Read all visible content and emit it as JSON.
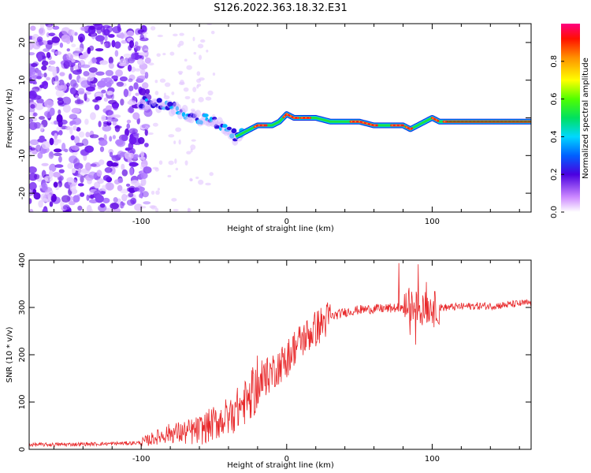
{
  "title": "S126.2022.363.18.32.E31",
  "chart_data": [
    {
      "type": "heatmap",
      "xlabel": "Height of straight line (km)",
      "ylabel": "Frequency (Hz)",
      "xlim": [
        -177,
        168
      ],
      "ylim": [
        -25,
        25
      ],
      "xticks": [
        -100,
        0,
        100
      ],
      "yticks": [
        -20,
        -10,
        0,
        10,
        20
      ],
      "colorbar": {
        "label": "Normalized spectral amplitude",
        "range": [
          0.0,
          1.0
        ],
        "ticks": [
          0.0,
          0.2,
          0.4,
          0.6,
          0.8
        ]
      },
      "ridge": {
        "x": [
          -100,
          -90,
          -80,
          -70,
          -60,
          -50,
          -40,
          -35,
          -30,
          -25,
          -20,
          -15,
          -10,
          -5,
          0,
          5,
          10,
          20,
          30,
          40,
          50,
          60,
          70,
          75,
          80,
          85,
          90,
          95,
          100,
          105,
          110,
          120,
          130,
          140,
          150,
          160,
          168
        ],
        "freq": [
          4,
          4,
          3,
          1,
          0,
          -1,
          -4,
          -5,
          -4,
          -3,
          -2,
          -2,
          -2,
          -1,
          1,
          0,
          0,
          0,
          -1,
          -1,
          -1,
          -2,
          -2,
          -2,
          -2,
          -3,
          -2,
          -1,
          0,
          -1,
          -1,
          -1,
          -1,
          -1,
          -1,
          -1,
          -1
        ]
      },
      "noise_region_x": [
        -177,
        -100
      ]
    },
    {
      "type": "line",
      "xlabel": "Height of straight line (km)",
      "ylabel": "SNR (10 * v/v)",
      "xlim": [
        -177,
        168
      ],
      "ylim": [
        0,
        400
      ],
      "xticks": [
        -100,
        0,
        100
      ],
      "yticks": [
        0,
        100,
        200,
        300,
        400
      ],
      "series": [
        {
          "color": "#e8282a",
          "x": [
            -177,
            -160,
            -140,
            -120,
            -100,
            -90,
            -80,
            -70,
            -60,
            -50,
            -40,
            -30,
            -20,
            -10,
            0,
            5,
            10,
            20,
            30,
            40,
            50,
            60,
            70,
            80,
            90,
            95,
            100,
            105,
            110,
            120,
            130,
            140,
            150,
            160,
            168
          ],
          "values": [
            10,
            10,
            11,
            12,
            14,
            25,
            35,
            35,
            40,
            55,
            70,
            95,
            130,
            165,
            190,
            215,
            230,
            255,
            280,
            290,
            295,
            297,
            298,
            300,
            302,
            300,
            300,
            300,
            300,
            302,
            303,
            303,
            305,
            308,
            310
          ]
        }
      ]
    }
  ]
}
